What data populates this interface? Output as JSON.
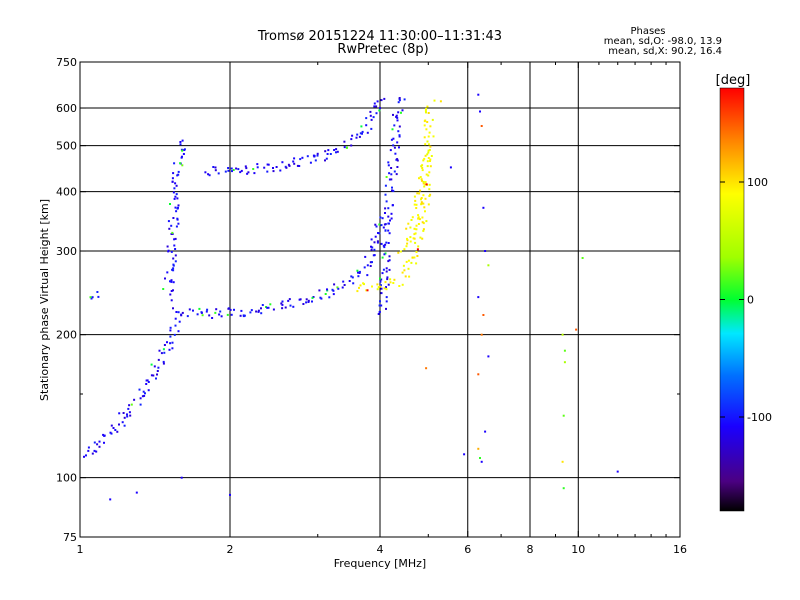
{
  "chart_data": {
    "type": "scatter",
    "title": "Tromsø 20151224 11:30:00–11:31:43",
    "subtitle": "RwPretec (8p)",
    "stats": {
      "title": "Phases",
      "line1": "mean, sd,O: -98.0, 13.9",
      "line2": "mean, sd,X:  90.2, 16.4"
    },
    "xlabel": "Frequency [MHz]",
    "ylabel": "Stationary phase Virtual Height [km]",
    "x_scale": "log",
    "y_scale": "log",
    "xlim": [
      1,
      16
    ],
    "ylim": [
      75,
      750
    ],
    "x_ticks": [
      1,
      2,
      4,
      6,
      8,
      10,
      16
    ],
    "x_tick_labels": [
      "1",
      "2",
      "4",
      "6",
      "8",
      "10",
      "16"
    ],
    "x_minor_ticks": [
      3,
      5,
      7,
      9,
      11,
      12,
      13,
      14,
      15
    ],
    "y_ticks": [
      75,
      100,
      200,
      300,
      400,
      500,
      600,
      750
    ],
    "y_tick_labels": [
      "75",
      "100",
      "200",
      "300",
      "400",
      "500",
      "600",
      "750"
    ],
    "y_minor_ticks": [
      150
    ],
    "grid": true,
    "colorbar": {
      "label": "[deg]",
      "range": [
        -180,
        180
      ],
      "ticks": [
        100,
        0,
        -100
      ],
      "tick_labels": [
        "100",
        "0",
        "-100"
      ]
    },
    "series": [
      {
        "segments": [
          {
            "x": [
              1.0,
              1.1,
              1.2,
              1.3,
              1.4,
              1.5,
              1.57
            ],
            "y": [
              110,
              120,
              130,
              145,
              165,
              190,
              215
            ]
          },
          {
            "x": [
              1.5,
              1.53,
              1.55,
              1.57,
              1.6,
              1.65
            ],
            "y": [
              240,
              300,
              380,
              450,
              500,
              510
            ]
          },
          {
            "x": [
              1.55,
              1.7,
              2.0,
              2.5,
              3.0,
              3.4,
              3.7,
              3.9,
              4.05
            ],
            "y": [
              225,
              222,
              222,
              228,
              240,
              255,
              270,
              300,
              360
            ]
          },
          {
            "x": [
              1.8,
              2.2,
              2.7,
              3.2,
              3.6,
              3.9,
              4.05
            ],
            "y": [
              440,
              445,
              460,
              480,
              520,
              580,
              640
            ]
          },
          {
            "x": [
              4.05,
              4.1,
              4.2,
              4.3,
              4.4
            ],
            "y": [
              220,
              300,
              420,
              520,
              640
            ]
          },
          {
            "x": [
              1.05,
              1.1
            ],
            "y": [
              240,
              245
            ]
          }
        ],
        "value_deg": -110
      },
      {
        "segments": [
          {
            "x": [
              3.6,
              4.0,
              4.4,
              4.7,
              4.85,
              4.95,
              5.0,
              5.05
            ],
            "y": [
              250,
              252,
              260,
              290,
              340,
              400,
              500,
              620
            ]
          },
          {
            "x": [
              4.4,
              4.6,
              4.75,
              4.85,
              4.95
            ],
            "y": [
              300,
              330,
              370,
              420,
              480
            ]
          }
        ],
        "value_deg": 90
      },
      {
        "points": {
          "x": [
            6.3,
            6.35,
            6.4,
            6.45,
            6.5,
            6.6,
            6.3,
            6.45,
            6.4,
            6.6,
            6.3,
            6.35,
            6.4,
            6.5,
            5.9,
            9.3,
            9.4,
            9.35,
            9.3,
            9.35,
            9.4,
            9.9,
            10.2,
            12.0,
            2.0,
            1.15,
            1.3,
            1.6,
            4.95,
            5.3,
            5.55,
            6.3
          ],
          "y": [
            640,
            590,
            550,
            370,
            300,
            280,
            240,
            220,
            200,
            180,
            115,
            110,
            108,
            125,
            112,
            200,
            185,
            135,
            108,
            95,
            175,
            205,
            290,
            103,
            92,
            90,
            93,
            100,
            170,
            620,
            450,
            165
          ],
          "v": [
            -110,
            -110,
            150,
            -110,
            -110,
            40,
            -110,
            150,
            140,
            -110,
            120,
            10,
            -110,
            -110,
            -110,
            50,
            20,
            20,
            100,
            10,
            40,
            150,
            20,
            -110,
            -110,
            -110,
            -110,
            -110,
            140,
            100,
            -110,
            150
          ]
        }
      }
    ]
  }
}
